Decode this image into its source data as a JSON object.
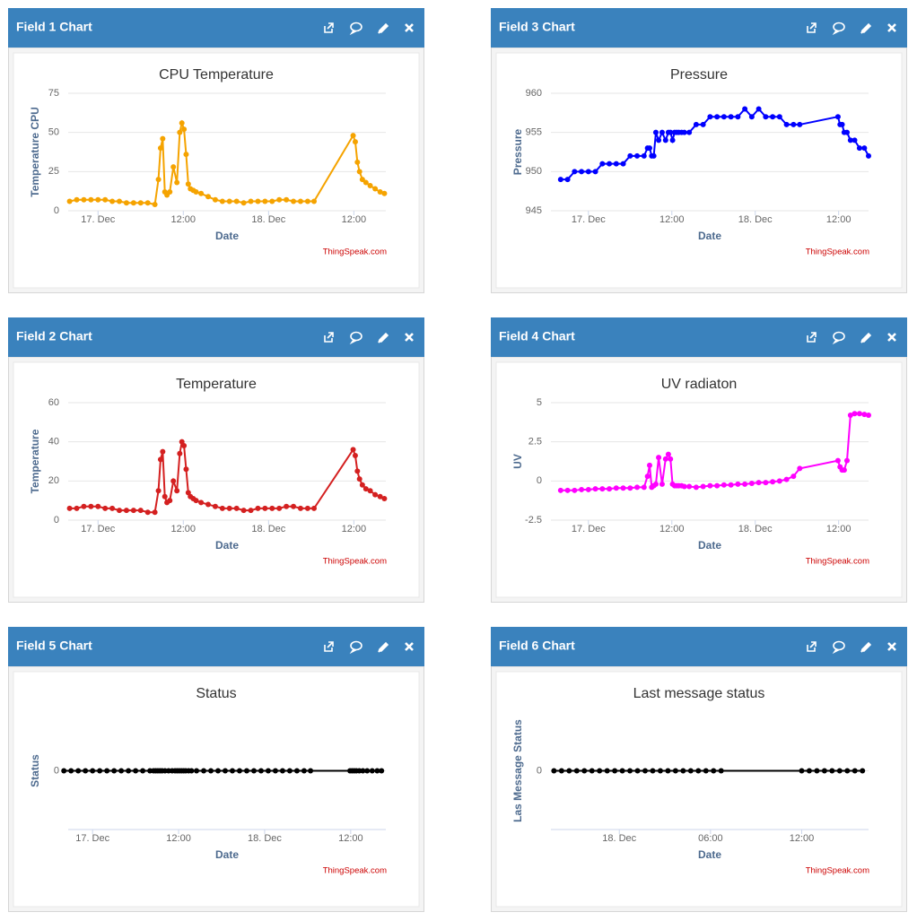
{
  "panels": [
    {
      "header": "Field 1 Chart",
      "credit": "ThingSpeak.com"
    },
    {
      "header": "Field 3 Chart",
      "credit": "ThingSpeak.com"
    },
    {
      "header": "Field 2 Chart",
      "credit": "ThingSpeak.com"
    },
    {
      "header": "Field 4 Chart",
      "credit": "ThingSpeak.com"
    },
    {
      "header": "Field 5 Chart",
      "credit": "ThingSpeak.com"
    },
    {
      "header": "Field 6 Chart",
      "credit": "ThingSpeak.com"
    }
  ],
  "chart_data": [
    {
      "type": "line",
      "title": "CPU Temperature",
      "xlabel": "Date",
      "ylabel": "Temperature CPU",
      "color": "#f5a300",
      "grid": true,
      "xlim": [
        -4.2,
        40.5
      ],
      "xticks": [
        {
          "value": 0,
          "label": "17. Dec"
        },
        {
          "value": 12,
          "label": "12:00"
        },
        {
          "value": 24,
          "label": "18. Dec"
        },
        {
          "value": 36,
          "label": "12:00"
        }
      ],
      "ylim": [
        0,
        75
      ],
      "yticks": [
        0,
        25,
        50,
        75
      ],
      "x": [
        -4,
        -3,
        -2,
        -1,
        0,
        1,
        2,
        3,
        4,
        5,
        6,
        7,
        8,
        8.5,
        8.8,
        9.1,
        9.4,
        9.7,
        10.1,
        10.6,
        11.1,
        11.5,
        11.8,
        12.1,
        12.4,
        12.7,
        13,
        13.4,
        13.8,
        14.5,
        15.5,
        16.5,
        17.5,
        18.5,
        19.5,
        20.5,
        21.5,
        22.5,
        23.5,
        24.5,
        25.5,
        26.5,
        27.5,
        28.5,
        29.5,
        30.4,
        35.9,
        36.2,
        36.5,
        36.8,
        37.2,
        37.7,
        38.3,
        39,
        39.7,
        40.3
      ],
      "values": [
        6,
        7,
        7,
        7,
        7,
        7,
        6,
        6,
        5,
        5,
        5,
        5,
        4,
        20,
        40,
        46,
        12,
        10,
        12,
        28,
        18,
        50,
        56,
        52,
        36,
        17,
        14,
        13,
        12,
        11,
        9,
        7,
        6,
        6,
        6,
        5,
        6,
        6,
        6,
        6,
        7,
        7,
        6,
        6,
        6,
        6,
        48,
        44,
        31,
        25,
        20,
        18,
        16,
        14,
        12,
        11
      ]
    },
    {
      "type": "line",
      "title": "Pressure",
      "xlabel": "Date",
      "ylabel": "Pressure",
      "color": "#0000ff",
      "grid": true,
      "xlim": [
        -5.4,
        40.3
      ],
      "xticks": [
        {
          "value": 0,
          "label": "17. Dec"
        },
        {
          "value": 12,
          "label": "12:00"
        },
        {
          "value": 24,
          "label": "18. Dec"
        },
        {
          "value": 36,
          "label": "12:00"
        }
      ],
      "ylim": [
        945,
        960
      ],
      "yticks": [
        945,
        950,
        955,
        960
      ],
      "x": [
        -4,
        -3,
        -2,
        -1,
        0,
        1,
        2,
        3,
        4,
        5,
        6,
        7,
        8,
        8.5,
        8.8,
        9.1,
        9.4,
        9.7,
        10.1,
        10.6,
        11.1,
        11.5,
        11.8,
        12.1,
        12.4,
        12.7,
        13,
        13.4,
        13.8,
        14.5,
        15.5,
        16.5,
        17.5,
        18.5,
        19.5,
        20.5,
        21.5,
        22.5,
        23.5,
        24.5,
        25.5,
        26.5,
        27.5,
        28.5,
        29.5,
        30.4,
        35.9,
        36.2,
        36.5,
        36.8,
        37.2,
        37.7,
        38.3,
        39,
        39.7,
        40.3
      ],
      "values": [
        949,
        949,
        950,
        950,
        950,
        950,
        951,
        951,
        951,
        951,
        952,
        952,
        952,
        953,
        953,
        952,
        952,
        955,
        954,
        955,
        954,
        955,
        955,
        954,
        955,
        955,
        955,
        955,
        955,
        955,
        956,
        956,
        957,
        957,
        957,
        957,
        957,
        958,
        957,
        958,
        957,
        957,
        957,
        956,
        956,
        956,
        957,
        956,
        956,
        955,
        955,
        954,
        954,
        953,
        953,
        952
      ]
    },
    {
      "type": "line",
      "title": "Temperature",
      "xlabel": "Date",
      "ylabel": "Temperature",
      "color": "#d42020",
      "grid": true,
      "xlim": [
        -4.2,
        40.5
      ],
      "xticks": [
        {
          "value": 0,
          "label": "17. Dec"
        },
        {
          "value": 12,
          "label": "12:00"
        },
        {
          "value": 24,
          "label": "18. Dec"
        },
        {
          "value": 36,
          "label": "12:00"
        }
      ],
      "ylim": [
        0,
        60
      ],
      "yticks": [
        0,
        20,
        40,
        60
      ],
      "x": [
        -4,
        -3,
        -2,
        -1,
        0,
        1,
        2,
        3,
        4,
        5,
        6,
        7,
        8,
        8.5,
        8.8,
        9.1,
        9.4,
        9.7,
        10.1,
        10.6,
        11.1,
        11.5,
        11.8,
        12.1,
        12.4,
        12.7,
        13,
        13.4,
        13.8,
        14.5,
        15.5,
        16.5,
        17.5,
        18.5,
        19.5,
        20.5,
        21.5,
        22.5,
        23.5,
        24.5,
        25.5,
        26.5,
        27.5,
        28.5,
        29.5,
        30.4,
        35.9,
        36.2,
        36.5,
        36.8,
        37.2,
        37.7,
        38.3,
        39,
        39.7,
        40.3
      ],
      "values": [
        6,
        6,
        7,
        7,
        7,
        6,
        6,
        5,
        5,
        5,
        5,
        4,
        4,
        15,
        31,
        35,
        12,
        9,
        10,
        20,
        15,
        34,
        40,
        38,
        26,
        14,
        12,
        11,
        10,
        9,
        8,
        7,
        6,
        6,
        6,
        5,
        5,
        6,
        6,
        6,
        6,
        7,
        7,
        6,
        6,
        6,
        36,
        33,
        25,
        21,
        18,
        16,
        15,
        13,
        12,
        11
      ]
    },
    {
      "type": "line",
      "title": "UV radiaton",
      "xlabel": "Date",
      "ylabel": "UV",
      "color": "#ff00ff",
      "grid": true,
      "xlim": [
        -5.4,
        40.3
      ],
      "xticks": [
        {
          "value": 0,
          "label": "17. Dec"
        },
        {
          "value": 12,
          "label": "12:00"
        },
        {
          "value": 24,
          "label": "18. Dec"
        },
        {
          "value": 36,
          "label": "12:00"
        }
      ],
      "ylim": [
        -2.5,
        5
      ],
      "yticks": [
        -2.5,
        0,
        2.5,
        5
      ],
      "x": [
        -4,
        -3,
        -2,
        -1,
        0,
        1,
        2,
        3,
        4,
        5,
        6,
        7,
        8,
        8.5,
        8.8,
        9.1,
        9.4,
        9.7,
        10.1,
        10.6,
        11.1,
        11.5,
        11.8,
        12.1,
        12.4,
        12.7,
        13,
        13.4,
        13.8,
        14.5,
        15.5,
        16.5,
        17.5,
        18.5,
        19.5,
        20.5,
        21.5,
        22.5,
        23.5,
        24.5,
        25.5,
        26.5,
        27.5,
        28.5,
        29.5,
        30.4,
        35.9,
        36.2,
        36.5,
        36.8,
        37.2,
        37.7,
        38.3,
        39,
        39.7,
        40.3
      ],
      "values": [
        -0.6,
        -0.6,
        -0.6,
        -0.55,
        -0.55,
        -0.5,
        -0.5,
        -0.5,
        -0.45,
        -0.45,
        -0.45,
        -0.4,
        -0.4,
        0.3,
        1,
        -0.4,
        -0.3,
        -0.2,
        1.5,
        -0.2,
        1.4,
        1.7,
        1.4,
        -0.2,
        -0.3,
        -0.3,
        -0.3,
        -0.3,
        -0.35,
        -0.35,
        -0.4,
        -0.35,
        -0.3,
        -0.3,
        -0.25,
        -0.25,
        -0.2,
        -0.2,
        -0.15,
        -0.1,
        -0.1,
        -0.05,
        0,
        0.1,
        0.3,
        0.8,
        1.3,
        0.9,
        0.7,
        0.7,
        1.3,
        4.2,
        4.3,
        4.3,
        4.25,
        4.2
      ]
    },
    {
      "type": "line",
      "title": "Status",
      "xlabel": "Date",
      "ylabel": "Status",
      "color": "#000000",
      "grid": true,
      "xlim": [
        -3.4,
        40.9
      ],
      "xticks": [
        {
          "value": 0,
          "label": "17. Dec"
        },
        {
          "value": 12,
          "label": "12:00"
        },
        {
          "value": 24,
          "label": "18. Dec"
        },
        {
          "value": 36,
          "label": "12:00"
        }
      ],
      "ylim": [
        -1,
        1
      ],
      "yticks": [
        0
      ],
      "x": [
        -4,
        -3,
        -2,
        -1,
        0,
        1,
        2,
        3,
        4,
        5,
        6,
        7,
        8,
        8.5,
        8.8,
        9.1,
        9.4,
        9.7,
        10.1,
        10.6,
        11.1,
        11.5,
        11.8,
        12.1,
        12.4,
        12.7,
        13,
        13.4,
        13.8,
        14.5,
        15.5,
        16.5,
        17.5,
        18.5,
        19.5,
        20.5,
        21.5,
        22.5,
        23.5,
        24.5,
        25.5,
        26.5,
        27.5,
        28.5,
        29.5,
        30.4,
        35.9,
        36.2,
        36.5,
        36.8,
        37.2,
        37.7,
        38.3,
        39,
        39.7,
        40.3
      ],
      "values": [
        0,
        0,
        0,
        0,
        0,
        0,
        0,
        0,
        0,
        0,
        0,
        0,
        0,
        0,
        0,
        0,
        0,
        0,
        0,
        0,
        0,
        0,
        0,
        0,
        0,
        0,
        0,
        0,
        0,
        0,
        0,
        0,
        0,
        0,
        0,
        0,
        0,
        0,
        0,
        0,
        0,
        0,
        0,
        0,
        0,
        0,
        0,
        0,
        0,
        0,
        0,
        0,
        0,
        0,
        0,
        0
      ]
    },
    {
      "type": "line",
      "title": "Last message status",
      "xlabel": "Date",
      "ylabel": "Las Message Status",
      "color": "#000000",
      "grid": true,
      "xlim": [
        19.5,
        40.4
      ],
      "xticks": [
        {
          "value": 24,
          "label": "18. Dec"
        },
        {
          "value": 30,
          "label": "06:00"
        },
        {
          "value": 36,
          "label": "12:00"
        }
      ],
      "ylim": [
        -1,
        1
      ],
      "yticks": [
        0
      ],
      "x": [
        19.7,
        20.2,
        20.7,
        21.2,
        21.7,
        22.2,
        22.7,
        23.2,
        23.7,
        24.2,
        24.7,
        25.2,
        25.7,
        26.2,
        26.7,
        27.2,
        27.7,
        28.2,
        28.7,
        29.2,
        29.7,
        30.2,
        30.7,
        36,
        36.5,
        37,
        37.5,
        38,
        38.5,
        39,
        39.5,
        40
      ],
      "values": [
        0,
        0,
        0,
        0,
        0,
        0,
        0,
        0,
        0,
        0,
        0,
        0,
        0,
        0,
        0,
        0,
        0,
        0,
        0,
        0,
        0,
        0,
        0,
        0,
        0,
        0,
        0,
        0,
        0,
        0,
        0,
        0
      ]
    }
  ]
}
